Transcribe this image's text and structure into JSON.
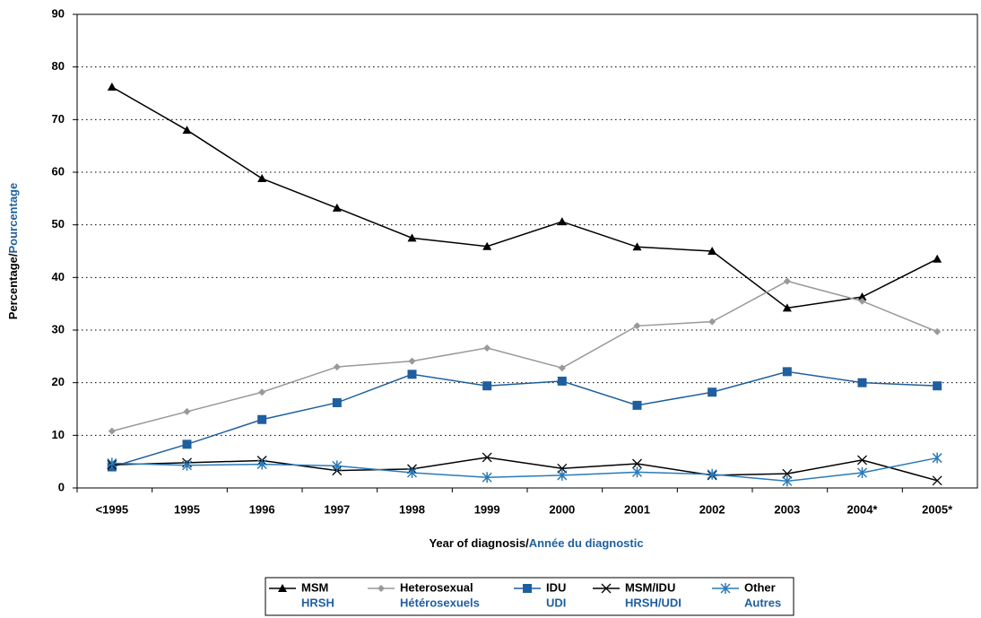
{
  "chart_data": {
    "type": "line",
    "y_label": "Percentage/",
    "y_label_fr": "Pourcentage",
    "x_label": "Year of diagnosis/",
    "x_label_fr": "Année du diagnostic",
    "categories": [
      "<1995",
      "1995",
      "1996",
      "1997",
      "1998",
      "1999",
      "2000",
      "2001",
      "2002",
      "2003",
      "2004*",
      "2005*"
    ],
    "ylim": [
      0,
      90
    ],
    "yticks": [
      0,
      10,
      20,
      30,
      40,
      50,
      60,
      70,
      80,
      90
    ],
    "grid": true,
    "legend": "bottom",
    "series": [
      {
        "name": "MSM",
        "name_fr": "HRSH",
        "color": "#000000",
        "marker": "triangle",
        "values": [
          76.2,
          68,
          58.8,
          53.2,
          47.5,
          45.9,
          50.6,
          45.8,
          45,
          34.2,
          36.3,
          43.5
        ]
      },
      {
        "name": "Heterosexual",
        "name_fr": "Hétérosexuels",
        "color": "#999999",
        "marker": "diamond",
        "values": [
          10.8,
          14.5,
          18.2,
          23,
          24.1,
          26.6,
          22.8,
          30.8,
          31.6,
          39.3,
          35.5,
          29.7
        ]
      },
      {
        "name": "IDU",
        "name_fr": "UDI",
        "color": "#1f5f9f",
        "marker": "square",
        "values": [
          4,
          8.3,
          13,
          16.2,
          21.6,
          19.4,
          20.3,
          15.7,
          18.2,
          22.1,
          20,
          19.4
        ]
      },
      {
        "name": "MSM/IDU",
        "name_fr": "HRSH/UDI",
        "color": "#000000",
        "marker": "x",
        "values": [
          4.4,
          4.8,
          5.2,
          3.3,
          3.6,
          5.8,
          3.7,
          4.6,
          2.4,
          2.7,
          5.3,
          1.4
        ]
      },
      {
        "name": "Other",
        "name_fr": "Autres",
        "color": "#2a7ab8",
        "marker": "star",
        "values": [
          4.7,
          4.3,
          4.5,
          4.2,
          2.9,
          2.0,
          2.4,
          3.0,
          2.6,
          1.3,
          2.9,
          5.7
        ]
      }
    ]
  }
}
